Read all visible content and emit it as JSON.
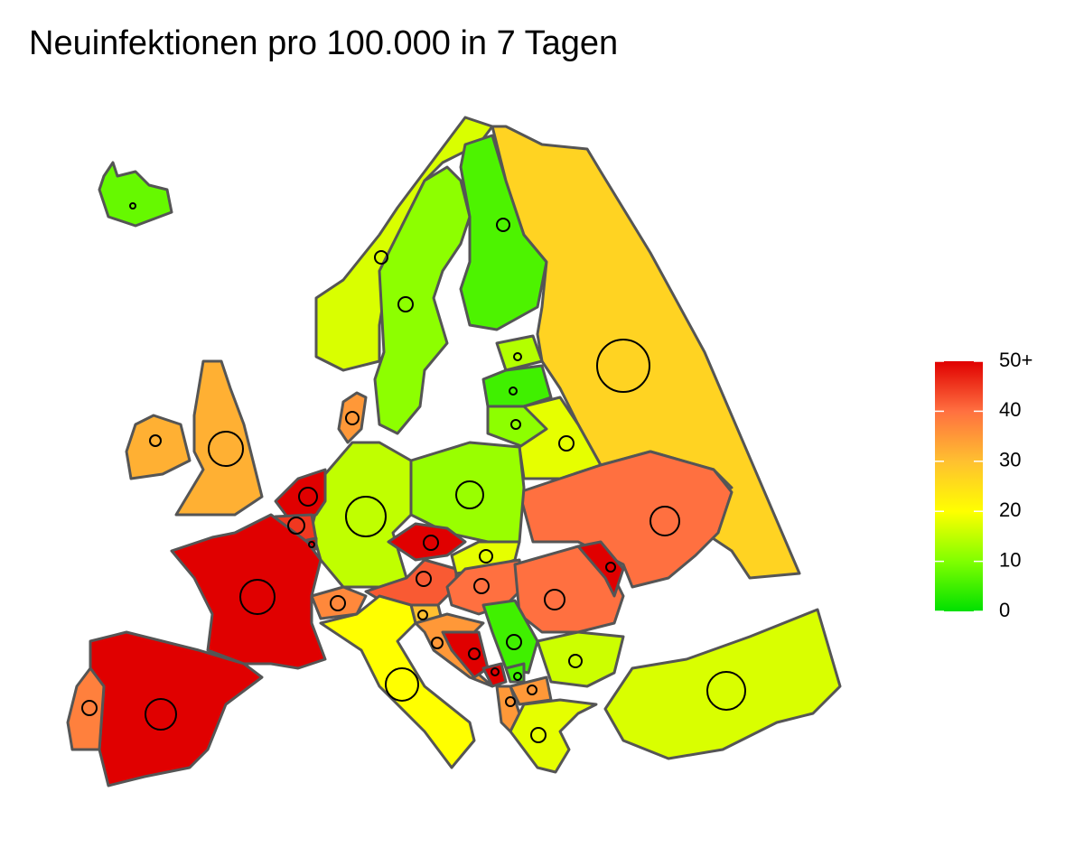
{
  "chart_data": {
    "type": "choropleth",
    "title": "Neuinfektionen pro 100.000 in 7 Tagen",
    "values": [
      8,
      17,
      11,
      6,
      27,
      14,
      5,
      11,
      18,
      40,
      12,
      15,
      35,
      50,
      45,
      50,
      50,
      32,
      32,
      50,
      42,
      37,
      18,
      40,
      40,
      50,
      30,
      35,
      50,
      5,
      50,
      5,
      35,
      35,
      16,
      18,
      17,
      20,
      50,
      38
    ],
    "colorbar": {
      "lim": [
        0,
        50
      ],
      "ticks": [
        0,
        10,
        20,
        30,
        40,
        {
          "value": 50,
          "label": "50+"
        }
      ],
      "colors": [
        "#00e000",
        "#80ff00",
        "#ffff00",
        "#ffc030",
        "#ff7040",
        "#e00000"
      ]
    }
  }
}
